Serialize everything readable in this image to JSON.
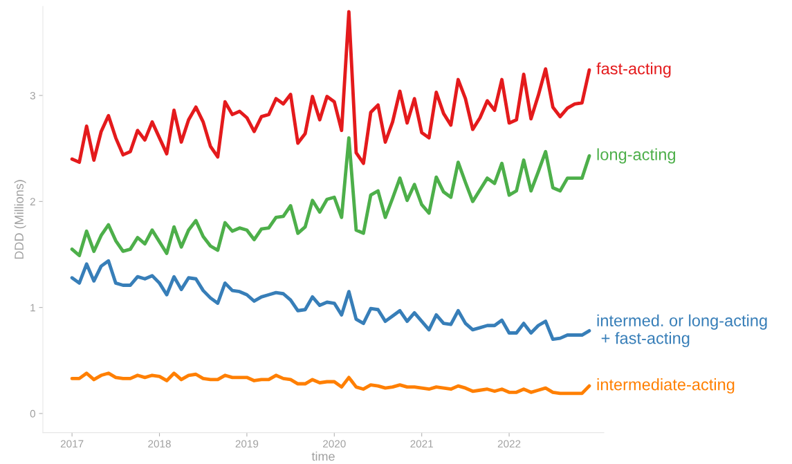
{
  "chart_data": {
    "type": "line",
    "xlabel": "time",
    "ylabel": "DDD (Millions)",
    "x": [
      "2017-01",
      "2017-02",
      "2017-03",
      "2017-04",
      "2017-05",
      "2017-06",
      "2017-07",
      "2017-08",
      "2017-09",
      "2017-10",
      "2017-11",
      "2017-12",
      "2018-01",
      "2018-02",
      "2018-03",
      "2018-04",
      "2018-05",
      "2018-06",
      "2018-07",
      "2018-08",
      "2018-09",
      "2018-10",
      "2018-11",
      "2018-12",
      "2019-01",
      "2019-02",
      "2019-03",
      "2019-04",
      "2019-05",
      "2019-06",
      "2019-07",
      "2019-08",
      "2019-09",
      "2019-10",
      "2019-11",
      "2019-12",
      "2020-01",
      "2020-02",
      "2020-03",
      "2020-04",
      "2020-05",
      "2020-06",
      "2020-07",
      "2020-08",
      "2020-09",
      "2020-10",
      "2020-11",
      "2020-12",
      "2021-01",
      "2021-02",
      "2021-03",
      "2021-04",
      "2021-05",
      "2021-06",
      "2021-07",
      "2021-08",
      "2021-09",
      "2021-10",
      "2021-11",
      "2021-12",
      "2022-01",
      "2022-02",
      "2022-03",
      "2022-04",
      "2022-05",
      "2022-06",
      "2022-07",
      "2022-08",
      "2022-09",
      "2022-10",
      "2022-11",
      "2022-12"
    ],
    "xlim": [
      "2016-09",
      "2023-02"
    ],
    "ylim": [
      -0.18,
      3.84
    ],
    "xticks": [
      {
        "value": "2017-01",
        "label": "2017"
      },
      {
        "value": "2018-01",
        "label": "2018"
      },
      {
        "value": "2019-01",
        "label": "2019"
      },
      {
        "value": "2020-01",
        "label": "2020"
      },
      {
        "value": "2021-01",
        "label": "2021"
      },
      {
        "value": "2022-01",
        "label": "2022"
      }
    ],
    "yticks": [
      0,
      1,
      2,
      3
    ],
    "grid": false,
    "legend": false,
    "line_style": "solid",
    "marker": "none",
    "series": [
      {
        "name": "fast-acting",
        "color": "#e41a1c",
        "values": [
          2.4,
          2.37,
          2.71,
          2.39,
          2.66,
          2.81,
          2.6,
          2.44,
          2.47,
          2.67,
          2.58,
          2.75,
          2.6,
          2.45,
          2.86,
          2.56,
          2.77,
          2.89,
          2.75,
          2.52,
          2.42,
          2.94,
          2.82,
          2.85,
          2.79,
          2.66,
          2.8,
          2.82,
          2.97,
          2.92,
          3.01,
          2.55,
          2.64,
          2.99,
          2.77,
          2.99,
          2.94,
          2.67,
          3.79,
          2.46,
          2.36,
          2.84,
          2.91,
          2.56,
          2.75,
          3.04,
          2.74,
          2.97,
          2.65,
          2.6,
          3.03,
          2.83,
          2.72,
          3.15,
          2.97,
          2.68,
          2.79,
          2.95,
          2.86,
          3.15,
          2.74,
          2.77,
          3.2,
          2.78,
          3.0,
          3.25,
          2.89,
          2.8,
          2.88,
          2.92,
          2.93,
          3.24
        ]
      },
      {
        "name": "long-acting",
        "color": "#4daf4a",
        "values": [
          1.55,
          1.49,
          1.72,
          1.53,
          1.68,
          1.78,
          1.63,
          1.53,
          1.55,
          1.66,
          1.6,
          1.73,
          1.62,
          1.51,
          1.76,
          1.57,
          1.73,
          1.82,
          1.67,
          1.58,
          1.54,
          1.8,
          1.72,
          1.75,
          1.73,
          1.64,
          1.74,
          1.75,
          1.85,
          1.86,
          1.96,
          1.7,
          1.76,
          2.01,
          1.9,
          2.02,
          2.04,
          1.85,
          2.6,
          1.73,
          1.7,
          2.06,
          2.1,
          1.85,
          2.03,
          2.22,
          2.01,
          2.16,
          1.97,
          1.89,
          2.23,
          2.09,
          2.04,
          2.37,
          2.18,
          2.0,
          2.11,
          2.22,
          2.17,
          2.36,
          2.06,
          2.1,
          2.39,
          2.1,
          2.28,
          2.47,
          2.13,
          2.1,
          2.22,
          2.22,
          2.22,
          2.43
        ]
      },
      {
        "name": "intermed. or long-acting\n + fast-acting",
        "color": "#377eb8",
        "values": [
          1.28,
          1.23,
          1.41,
          1.25,
          1.39,
          1.44,
          1.23,
          1.21,
          1.21,
          1.29,
          1.27,
          1.3,
          1.23,
          1.12,
          1.29,
          1.17,
          1.28,
          1.27,
          1.16,
          1.09,
          1.04,
          1.23,
          1.16,
          1.15,
          1.12,
          1.06,
          1.1,
          1.12,
          1.14,
          1.13,
          1.07,
          0.97,
          0.98,
          1.1,
          1.02,
          1.05,
          1.04,
          0.93,
          1.15,
          0.89,
          0.85,
          0.99,
          0.98,
          0.87,
          0.92,
          0.97,
          0.87,
          0.95,
          0.87,
          0.79,
          0.93,
          0.85,
          0.84,
          0.97,
          0.85,
          0.79,
          0.81,
          0.83,
          0.83,
          0.88,
          0.76,
          0.76,
          0.85,
          0.76,
          0.83,
          0.87,
          0.7,
          0.71,
          0.74,
          0.74,
          0.74,
          0.78
        ]
      },
      {
        "name": "intermediate-acting",
        "color": "#ff7f00",
        "values": [
          0.33,
          0.33,
          0.38,
          0.32,
          0.36,
          0.38,
          0.34,
          0.33,
          0.33,
          0.36,
          0.34,
          0.36,
          0.35,
          0.31,
          0.38,
          0.32,
          0.36,
          0.37,
          0.33,
          0.32,
          0.32,
          0.36,
          0.34,
          0.34,
          0.34,
          0.31,
          0.32,
          0.32,
          0.36,
          0.33,
          0.32,
          0.28,
          0.28,
          0.32,
          0.29,
          0.3,
          0.3,
          0.25,
          0.34,
          0.25,
          0.23,
          0.27,
          0.26,
          0.24,
          0.25,
          0.27,
          0.25,
          0.25,
          0.24,
          0.23,
          0.25,
          0.24,
          0.23,
          0.26,
          0.24,
          0.21,
          0.22,
          0.23,
          0.21,
          0.23,
          0.2,
          0.2,
          0.23,
          0.2,
          0.22,
          0.24,
          0.2,
          0.19,
          0.19,
          0.19,
          0.19,
          0.26
        ]
      }
    ]
  }
}
